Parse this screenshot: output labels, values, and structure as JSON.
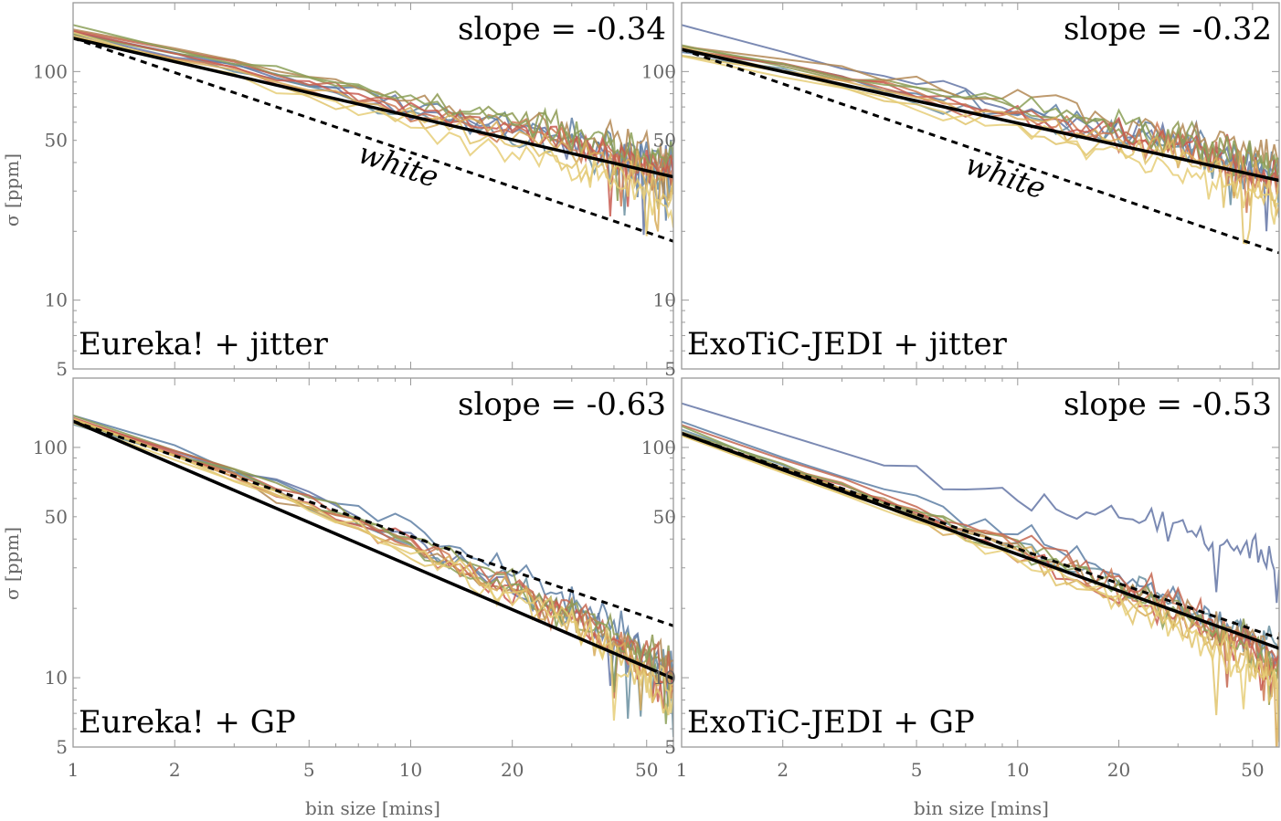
{
  "figure": {
    "xlabel": "bin size [mins]",
    "ylabel": "σ [ppm]"
  },
  "chart_data": [
    {
      "type": "line",
      "panel_label": "Eureka! + jitter",
      "slope_label": "slope = -0.34",
      "white_label": "white",
      "xscale": "log",
      "yscale": "log",
      "xlim": [
        1,
        60
      ],
      "ylim": [
        5,
        200
      ],
      "xticks": [
        1,
        2,
        5,
        10,
        20,
        50
      ],
      "yticks": [
        5,
        10,
        50,
        100
      ],
      "fit_line": {
        "slope": -0.34,
        "x": [
          1,
          60
        ],
        "y": [
          140,
          34.6
        ]
      },
      "white_line": {
        "slope": -0.5,
        "x": [
          1,
          60
        ],
        "y": [
          140,
          18.1
        ]
      },
      "series_anchors": {
        "x": [
          1,
          3,
          10,
          30,
          55
        ],
        "y": [
          [
            145,
            106,
            68,
            50,
            38
          ],
          [
            148,
            107,
            72,
            52,
            40
          ],
          [
            146,
            102,
            64,
            46,
            33
          ],
          [
            150,
            110,
            74,
            54,
            42
          ],
          [
            153,
            112,
            76,
            55,
            44
          ],
          [
            147,
            106,
            70,
            50,
            38
          ],
          [
            144,
            103,
            66,
            48,
            36
          ],
          [
            149,
            104,
            70,
            50,
            38
          ],
          [
            155,
            110,
            74,
            53,
            40
          ],
          [
            146,
            100,
            64,
            45,
            32
          ],
          [
            141,
            96,
            60,
            41,
            29
          ],
          [
            143,
            94,
            56,
            38,
            26
          ]
        ]
      }
    },
    {
      "type": "line",
      "panel_label": "ExoTiC-JEDI + jitter",
      "slope_label": "slope = -0.32",
      "white_label": "white",
      "xscale": "log",
      "yscale": "log",
      "xlim": [
        1,
        60
      ],
      "ylim": [
        5,
        200
      ],
      "xticks": [
        1,
        2,
        5,
        10,
        20,
        50
      ],
      "yticks": [
        5,
        10,
        50,
        100
      ],
      "fit_line": {
        "slope": -0.32,
        "x": [
          1,
          60
        ],
        "y": [
          125,
          33.4
        ]
      },
      "white_line": {
        "slope": -0.5,
        "x": [
          1,
          60
        ],
        "y": [
          125,
          16.1
        ]
      },
      "series_anchors": {
        "x": [
          1,
          3,
          10,
          30,
          55
        ],
        "y": [
          [
            160,
            108,
            70,
            50,
            38
          ],
          [
            128,
            96,
            68,
            50,
            38
          ],
          [
            120,
            88,
            62,
            46,
            34
          ],
          [
            130,
            96,
            70,
            52,
            40
          ],
          [
            135,
            100,
            74,
            56,
            44
          ],
          [
            127,
            92,
            64,
            46,
            34
          ],
          [
            124,
            90,
            64,
            46,
            34
          ],
          [
            129,
            94,
            66,
            48,
            36
          ],
          [
            131,
            96,
            70,
            52,
            40
          ],
          [
            126,
            90,
            62,
            44,
            32
          ],
          [
            122,
            86,
            58,
            41,
            30
          ],
          [
            118,
            82,
            56,
            38,
            27
          ]
        ]
      }
    },
    {
      "type": "line",
      "panel_label": "Eureka! + GP",
      "slope_label": "slope = -0.63",
      "xscale": "log",
      "yscale": "log",
      "xlim": [
        1,
        60
      ],
      "ylim": [
        5,
        200
      ],
      "xticks": [
        1,
        2,
        5,
        10,
        20,
        50
      ],
      "yticks": [
        5,
        10,
        50,
        100
      ],
      "fit_line": {
        "slope": -0.63,
        "x": [
          1,
          60
        ],
        "y": [
          130,
          9.9
        ]
      },
      "white_line": {
        "slope": -0.5,
        "x": [
          1,
          60
        ],
        "y": [
          130,
          16.8
        ]
      },
      "series_anchors": {
        "x": [
          1,
          3,
          10,
          30,
          55
        ],
        "y": [
          [
            132,
            82,
            40,
            18,
            11
          ],
          [
            135,
            84,
            44,
            22,
            13
          ],
          [
            130,
            76,
            38,
            19,
            11
          ],
          [
            138,
            80,
            40,
            20,
            12
          ],
          [
            128,
            74,
            37,
            19,
            12
          ],
          [
            136,
            78,
            39,
            19,
            11
          ],
          [
            133,
            76,
            37,
            18,
            10
          ],
          [
            131,
            75,
            37,
            18,
            10
          ],
          [
            134,
            78,
            38,
            19,
            11
          ],
          [
            132,
            74,
            36,
            18,
            10
          ],
          [
            129,
            72,
            35,
            17,
            9
          ],
          [
            130,
            74,
            36,
            17,
            9
          ]
        ]
      }
    },
    {
      "type": "line",
      "panel_label": "ExoTiC-JEDI + GP",
      "slope_label": "slope = -0.53",
      "xscale": "log",
      "yscale": "log",
      "xlim": [
        1,
        60
      ],
      "ylim": [
        5,
        200
      ],
      "xticks": [
        1,
        2,
        5,
        10,
        20,
        50
      ],
      "yticks": [
        5,
        10,
        50,
        100
      ],
      "fit_line": {
        "slope": -0.53,
        "x": [
          1,
          60
        ],
        "y": [
          115,
          13.4
        ]
      },
      "white_line": {
        "slope": -0.5,
        "x": [
          1,
          60
        ],
        "y": [
          115,
          14.8
        ]
      },
      "series_anchors": {
        "x": [
          1,
          3,
          10,
          30,
          55
        ],
        "y": [
          [
            158,
            95,
            60,
            45,
            34
          ],
          [
            128,
            76,
            42,
            22,
            14
          ],
          [
            115,
            68,
            38,
            21,
            14
          ],
          [
            118,
            70,
            38,
            20,
            13
          ],
          [
            112,
            66,
            36,
            20,
            13
          ],
          [
            120,
            72,
            40,
            21,
            13
          ],
          [
            116,
            66,
            36,
            19,
            12
          ],
          [
            114,
            66,
            35,
            18,
            12
          ],
          [
            118,
            68,
            36,
            19,
            12
          ],
          [
            113,
            66,
            34,
            17,
            11
          ],
          [
            110,
            64,
            33,
            16,
            10
          ],
          [
            112,
            65,
            33,
            16,
            10
          ]
        ]
      }
    }
  ],
  "series_colors": [
    "#6476a6",
    "#5e7fa5",
    "#6a8fa0",
    "#8d9a52",
    "#b38855",
    "#c46650",
    "#cf7a55",
    "#c85a50",
    "#8ba058",
    "#d7ab5a",
    "#e0c46c",
    "#e6ce78"
  ]
}
